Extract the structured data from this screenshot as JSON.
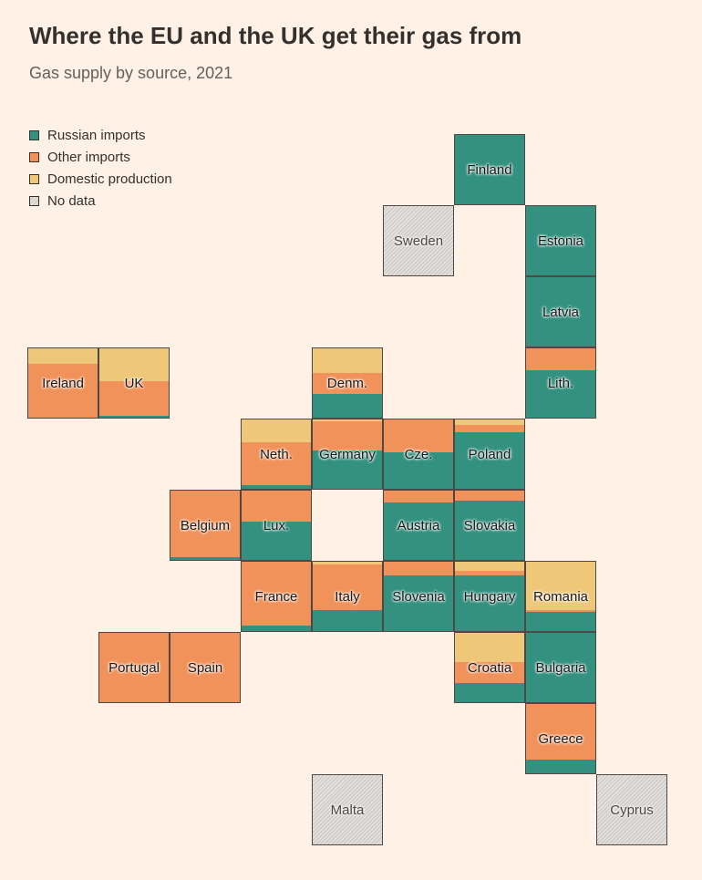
{
  "header": {
    "title": "Where the EU and the UK get their gas from",
    "subtitle": "Gas supply by source, 2021"
  },
  "colors": {
    "russian": "#33917f",
    "other": "#f0925a",
    "domestic": "#eec779",
    "nodata": "#dedad6"
  },
  "legend": {
    "items": [
      {
        "key": "russian",
        "label": "Russian imports"
      },
      {
        "key": "other",
        "label": "Other imports"
      },
      {
        "key": "domestic",
        "label": "Domestic production"
      },
      {
        "key": "nodata",
        "label": "No data"
      }
    ]
  },
  "chart_data": {
    "type": "tile-grid map (stacked share bars)",
    "title": "Where the EU and the UK get their gas from",
    "subtitle": "Gas supply by source, 2021",
    "series_order": [
      "domestic",
      "other",
      "russian"
    ],
    "countries": [
      {
        "name": "Finland",
        "col": 6,
        "row": 0,
        "domestic": 0,
        "other": 0,
        "russian": 100
      },
      {
        "name": "Sweden",
        "col": 5,
        "row": 1,
        "nodata": true
      },
      {
        "name": "Estonia",
        "col": 7,
        "row": 1,
        "domestic": 0,
        "other": 0,
        "russian": 100
      },
      {
        "name": "Latvia",
        "col": 7,
        "row": 2,
        "domestic": 0,
        "other": 0,
        "russian": 100
      },
      {
        "name": "Ireland",
        "col": 0,
        "row": 3,
        "domestic": 22,
        "other": 78,
        "russian": 0
      },
      {
        "name": "UK",
        "col": 1,
        "row": 3,
        "domestic": 48,
        "other": 49,
        "russian": 3
      },
      {
        "name": "Denm.",
        "col": 4,
        "row": 3,
        "domestic": 36,
        "other": 30,
        "russian": 34
      },
      {
        "name": "Lith.",
        "col": 7,
        "row": 3,
        "domestic": 0,
        "other": 32,
        "russian": 68
      },
      {
        "name": "Neth.",
        "col": 3,
        "row": 4,
        "domestic": 33,
        "other": 62,
        "russian": 5
      },
      {
        "name": "Germany",
        "col": 4,
        "row": 4,
        "domestic": 3,
        "other": 42,
        "russian": 55
      },
      {
        "name": "Cze.",
        "col": 5,
        "row": 4,
        "domestic": 0,
        "other": 48,
        "russian": 52
      },
      {
        "name": "Poland",
        "col": 6,
        "row": 4,
        "domestic": 8,
        "other": 10,
        "russian": 82
      },
      {
        "name": "Belgium",
        "col": 2,
        "row": 5,
        "domestic": 0,
        "other": 96,
        "russian": 4
      },
      {
        "name": "Lux.",
        "col": 3,
        "row": 5,
        "domestic": 0,
        "other": 45,
        "russian": 55
      },
      {
        "name": "Austria",
        "col": 5,
        "row": 5,
        "domestic": 0,
        "other": 17,
        "russian": 83
      },
      {
        "name": "Slovakia",
        "col": 6,
        "row": 5,
        "domestic": 0,
        "other": 15,
        "russian": 85
      },
      {
        "name": "France",
        "col": 3,
        "row": 6,
        "domestic": 0,
        "other": 92,
        "russian": 8
      },
      {
        "name": "Italy",
        "col": 4,
        "row": 6,
        "domestic": 4,
        "other": 66,
        "russian": 30
      },
      {
        "name": "Slovenia",
        "col": 5,
        "row": 6,
        "domestic": 0,
        "other": 20,
        "russian": 80
      },
      {
        "name": "Hungary",
        "col": 6,
        "row": 6,
        "domestic": 13,
        "other": 7,
        "russian": 80
      },
      {
        "name": "Romania",
        "col": 7,
        "row": 6,
        "domestic": 70,
        "other": 2,
        "russian": 28
      },
      {
        "name": "Portugal",
        "col": 1,
        "row": 7,
        "domestic": 0,
        "other": 100,
        "russian": 0
      },
      {
        "name": "Spain",
        "col": 2,
        "row": 7,
        "domestic": 0,
        "other": 100,
        "russian": 0
      },
      {
        "name": "Croatia",
        "col": 6,
        "row": 7,
        "domestic": 42,
        "other": 30,
        "russian": 28
      },
      {
        "name": "Bulgaria",
        "col": 7,
        "row": 7,
        "domestic": 0,
        "other": 0,
        "russian": 100
      },
      {
        "name": "Greece",
        "col": 7,
        "row": 8,
        "domestic": 0,
        "other": 80,
        "russian": 20
      },
      {
        "name": "Malta",
        "col": 4,
        "row": 9,
        "nodata": true
      },
      {
        "name": "Cyprus",
        "col": 8,
        "row": 9,
        "nodata": true
      }
    ]
  }
}
